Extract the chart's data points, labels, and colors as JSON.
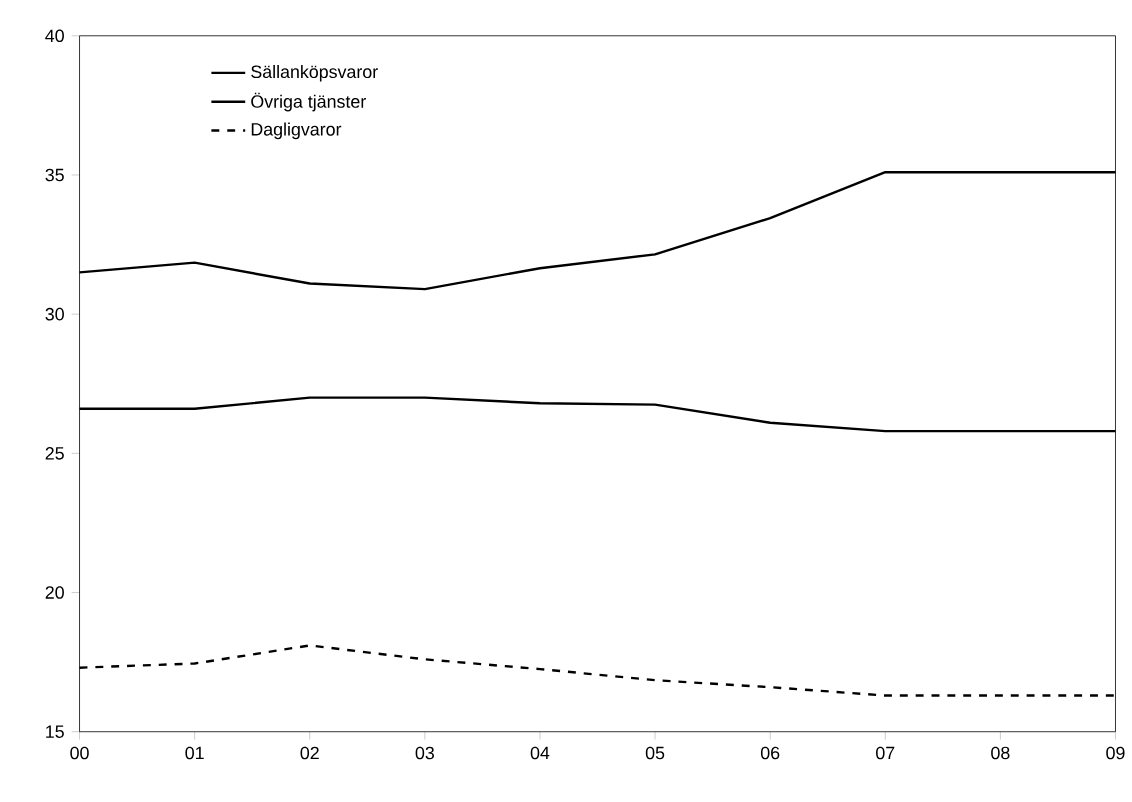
{
  "chart_data": {
    "type": "line",
    "categories": [
      "00",
      "01",
      "02",
      "03",
      "04",
      "05",
      "06",
      "07",
      "08",
      "09"
    ],
    "series": [
      {
        "name": "Sällanköpsvaror",
        "color": "#000000",
        "line_style": "solid",
        "values": [
          31.5,
          31.85,
          31.1,
          30.9,
          31.65,
          32.15,
          33.45,
          35.1,
          35.1,
          35.1
        ]
      },
      {
        "name": "Övriga tjänster",
        "color": "#000000",
        "line_style": "solid",
        "values": [
          26.6,
          26.6,
          27.0,
          27.0,
          26.8,
          26.75,
          26.1,
          25.8,
          25.8,
          25.8
        ]
      },
      {
        "name": "Dagligvaror",
        "color": "#000000",
        "line_style": "dashed",
        "values": [
          17.3,
          17.45,
          18.1,
          17.6,
          17.25,
          16.85,
          16.6,
          16.3,
          16.3,
          16.3
        ]
      }
    ],
    "ylim": [
      15,
      40
    ],
    "yticks": [
      15,
      20,
      25,
      30,
      35,
      40
    ],
    "legend": "top left",
    "grid": false,
    "marker": "none"
  }
}
